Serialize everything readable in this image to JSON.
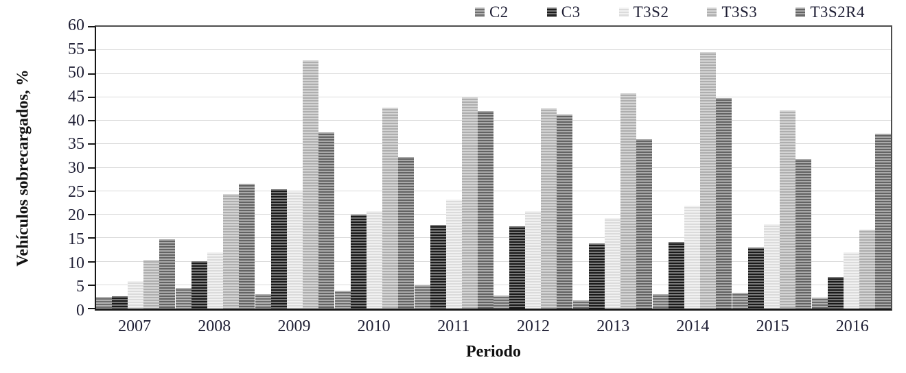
{
  "page": {
    "background": "#ffffff",
    "text_color": "#1d1d33",
    "gridline_color": "#d9d9d9"
  },
  "chart_data": {
    "type": "bar",
    "title": "",
    "xlabel": "Periodo",
    "ylabel": "Vehículos sobrecargados, %",
    "categories": [
      "2007",
      "2008",
      "2009",
      "2010",
      "2011",
      "2012",
      "2013",
      "2014",
      "2015",
      "2016"
    ],
    "series": [
      {
        "name": "C2",
        "values": [
          2.5,
          4.4,
          3.0,
          3.8,
          4.9,
          2.8,
          1.7,
          3.0,
          3.3,
          2.4
        ],
        "hatch_light": "#b2b2b2",
        "hatch_dark": "#6e6e6e"
      },
      {
        "name": "C3",
        "values": [
          2.7,
          10.1,
          25.4,
          20.0,
          17.8,
          17.5,
          13.9,
          14.1,
          13.0,
          6.7
        ],
        "hatch_light": "#787878",
        "hatch_dark": "#1a1a1a"
      },
      {
        "name": "T3S2",
        "values": [
          5.9,
          12.0,
          25.0,
          20.8,
          23.2,
          20.7,
          19.2,
          21.9,
          18.0,
          12.0
        ],
        "hatch_light": "#f1f1f1",
        "hatch_dark": "#dbdbdb"
      },
      {
        "name": "T3S3",
        "values": [
          10.4,
          24.4,
          52.9,
          42.8,
          44.9,
          42.6,
          45.9,
          54.6,
          42.2,
          16.8
        ],
        "hatch_light": "#d4d4d4",
        "hatch_dark": "#aeaeae"
      },
      {
        "name": "T3S2R4",
        "values": [
          14.7,
          26.6,
          37.5,
          32.2,
          42.0,
          41.3,
          36.0,
          44.8,
          31.8,
          37.2
        ],
        "hatch_light": "#a9a9a9",
        "hatch_dark": "#636363"
      }
    ],
    "ylim": [
      0,
      60
    ],
    "ytick_step": 5,
    "yticks": [
      0,
      5,
      10,
      15,
      20,
      25,
      30,
      35,
      40,
      45,
      50,
      55,
      60
    ],
    "grid": true,
    "legend_position": "top-right",
    "bar_hatch_style": "horizontal-stripes"
  }
}
